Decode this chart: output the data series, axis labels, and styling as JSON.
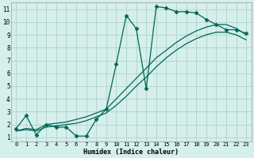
{
  "xlabel": "Humidex (Indice chaleur)",
  "background_color": "#d5efeb",
  "grid_color": "#aaccc6",
  "line_color": "#006655",
  "xlim_min": -0.5,
  "xlim_max": 23.5,
  "ylim_min": 0.7,
  "ylim_max": 11.5,
  "xticks": [
    0,
    1,
    2,
    3,
    4,
    5,
    6,
    7,
    8,
    9,
    10,
    11,
    12,
    13,
    14,
    15,
    16,
    17,
    18,
    19,
    20,
    21,
    22,
    23
  ],
  "yticks": [
    1,
    2,
    3,
    4,
    5,
    6,
    7,
    8,
    9,
    10,
    11
  ],
  "line1_x": [
    0,
    1,
    2,
    3,
    4,
    5,
    6,
    7,
    8,
    9,
    10,
    11,
    12,
    13,
    14,
    15,
    16,
    17,
    18,
    19,
    20,
    21,
    22,
    23
  ],
  "line1_y": [
    1.7,
    2.7,
    1.2,
    2.0,
    1.8,
    1.8,
    1.1,
    1.1,
    2.4,
    3.2,
    6.7,
    10.5,
    9.5,
    4.8,
    11.2,
    11.1,
    10.8,
    10.8,
    10.7,
    10.2,
    9.8,
    9.4,
    9.4,
    9.1
  ],
  "line2_x": [
    0,
    1,
    2,
    3,
    4,
    5,
    6,
    7,
    8,
    9,
    10,
    11,
    12,
    13,
    14,
    15,
    16,
    17,
    18,
    19,
    20,
    21,
    22,
    23
  ],
  "line2_y": [
    1.5,
    1.7,
    1.6,
    2.0,
    2.1,
    2.2,
    2.4,
    2.6,
    2.9,
    3.2,
    4.0,
    4.8,
    5.6,
    6.4,
    7.2,
    7.8,
    8.4,
    8.9,
    9.3,
    9.6,
    9.8,
    9.8,
    9.5,
    9.0
  ],
  "line3_x": [
    0,
    1,
    2,
    3,
    4,
    5,
    6,
    7,
    8,
    9,
    10,
    11,
    12,
    13,
    14,
    15,
    16,
    17,
    18,
    19,
    20,
    21,
    22,
    23
  ],
  "line3_y": [
    1.5,
    1.6,
    1.5,
    1.8,
    1.9,
    2.0,
    2.1,
    2.3,
    2.6,
    2.9,
    3.5,
    4.2,
    5.0,
    5.7,
    6.5,
    7.2,
    7.8,
    8.3,
    8.7,
    9.0,
    9.2,
    9.2,
    9.0,
    8.6
  ],
  "xlabel_fontsize": 6,
  "tick_fontsize": 5,
  "linewidth": 0.9,
  "marker": "D",
  "markersize": 2.5
}
